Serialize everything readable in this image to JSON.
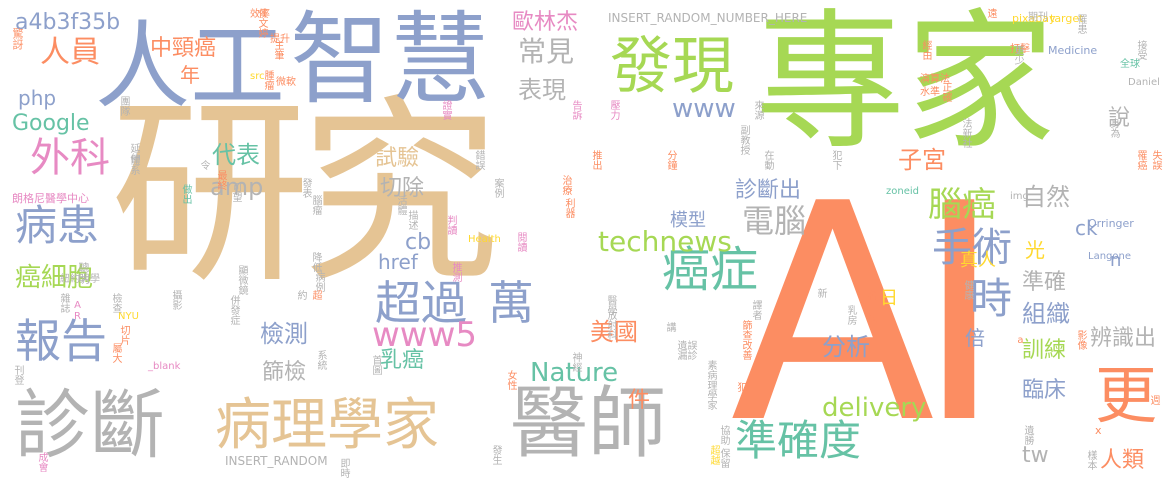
{
  "palette": {
    "tan": "#e5c494",
    "orange": "#fc8d62",
    "green": "#a6d854",
    "blue": "#8da0cb",
    "teal": "#66c2a5",
    "pink": "#e78ac3",
    "yellow": "#ffd92f",
    "gray": "#b3b3b3"
  },
  "words": [
    "研究",
    "AI",
    "專家",
    "人工",
    "智慧",
    "發現",
    "診斷",
    "病理學家",
    "醫師",
    "更",
    "準確度",
    "癌症",
    "手術",
    "超過",
    "萬",
    "報告",
    "時",
    "外科",
    "病患",
    "腦癌",
    "常見",
    "表現",
    "電腦",
    "technews",
    "人員",
    "中頸癌",
    "歐林杰",
    "www",
    "www5",
    "Google",
    "php",
    "a4b3f35b",
    "自然",
    "組織",
    "說",
    "診斷出",
    "子宮",
    "試驗",
    "切除",
    "代表",
    "amp",
    "cb",
    "href",
    "Nature",
    "delivery",
    "美國",
    "乳癌",
    "分析",
    "檢測",
    "篩檢",
    "癌細胞",
    "訓練",
    "準確",
    "臨床",
    "辨識出",
    "人類",
    "倍",
    "光",
    "tw",
    "ck",
    "n",
    "模型",
    "年",
    "件",
    "日",
    "真人",
    "INSERT_RANDOM_NUMBER_HERE",
    "INSERT_RANDOM",
    "pixabay",
    "target",
    "Medicine",
    "Orringer",
    "Health",
    "Langone",
    "zoneid",
    "img",
    "Daniel",
    "_blank",
    "NYU",
    "src",
    "朗格尼醫學中心",
    "紐約大學",
    "提升",
    "效率",
    "微軟",
    "演算法",
    "水準",
    "全球",
    "打擊",
    "期刊",
    "驚訝",
    "聰明",
    "主筆",
    "侯文婷",
    "腫瘤",
    "經由",
    "正確",
    "接受",
    "更少",
    "罹患",
    "遠",
    "團隊",
    "證實",
    "告訴",
    "壓力",
    "副教授",
    "來源",
    "身為",
    "罹癌",
    "失誤",
    "法新社",
    "在動",
    "犯下",
    "分鐘",
    "推出",
    "錯誤",
    "案例",
    "治療",
    "利器",
    "最終",
    "可望",
    "AR",
    "成會",
    "延伸",
    "體系",
    "令",
    "做出",
    "發表",
    "腦瘤",
    "判讀",
    "活體",
    "描述",
    "閱讀",
    "推測",
    "降低",
    "顯微鏡",
    "病例",
    "約",
    "超",
    "攝影",
    "併發症",
    "雜誌",
    "檢查",
    "切片",
    "屬大",
    "刊登",
    "系統",
    "首圖",
    "女性",
    "神經",
    "醫學",
    "放射科",
    "誤診",
    "講",
    "遺漏",
    "乳房",
    "名",
    "快",
    "新",
    "健康",
    "影像",
    "譯者",
    "篩查",
    "改善",
    "素病理學家",
    "犯",
    "協助",
    "保留",
    "樣本",
    "遺勝",
    "即時",
    "發生",
    "超越",
    "a",
    "x",
    "週"
  ]
}
